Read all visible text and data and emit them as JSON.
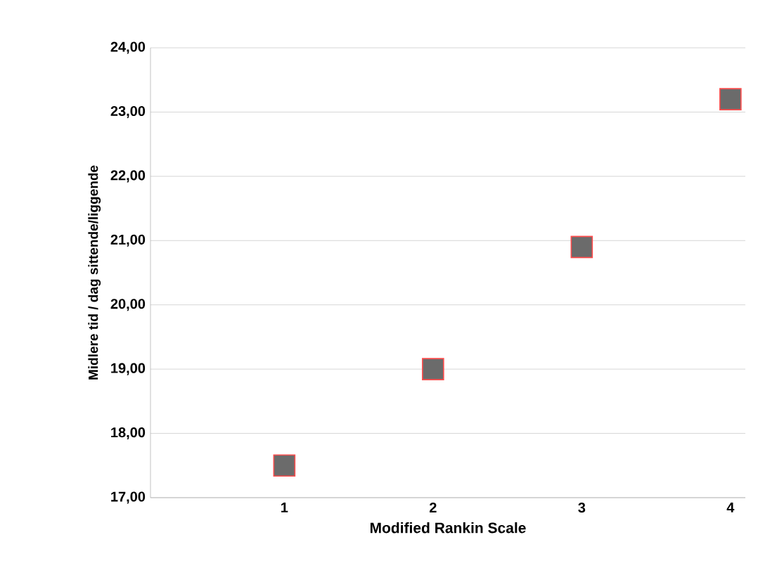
{
  "chart_data": {
    "type": "scatter",
    "xlabel": "Modified Rankin Scale",
    "ylabel": "Midlere tid / dag sittende/liggende",
    "categories": [
      "1",
      "2",
      "3",
      "4"
    ],
    "series": [
      {
        "color": "#6b6b6b",
        "values": [
          17.5,
          19.0,
          20.9,
          23.2
        ]
      }
    ],
    "ylim": [
      17,
      24
    ],
    "yticks": [
      {
        "value": 17,
        "label": "17,00"
      },
      {
        "value": 18,
        "label": "18,00"
      },
      {
        "value": 19,
        "label": "19,00"
      },
      {
        "value": 20,
        "label": "20,00"
      },
      {
        "value": 21,
        "label": "21,00"
      },
      {
        "value": 22,
        "label": "22,00"
      },
      {
        "value": 23,
        "label": "23,00"
      },
      {
        "value": 24,
        "label": "24,00"
      }
    ],
    "grid": "y",
    "marker": "square"
  }
}
